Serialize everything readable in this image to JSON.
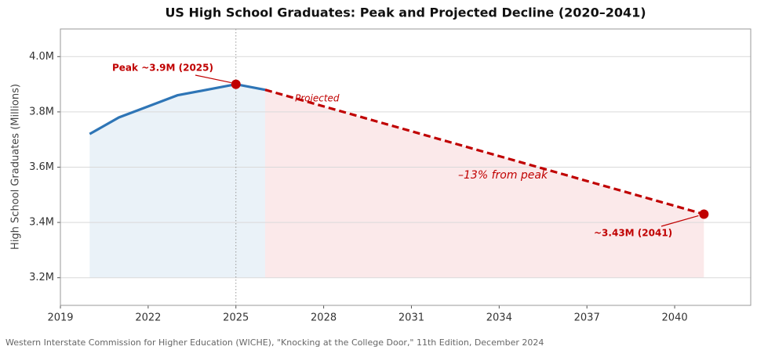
{
  "chart_data": {
    "type": "line",
    "title": "US High School Graduates: Peak and Projected Decline (2020–2041)",
    "y_label": "High School Graduates (Millions)",
    "source": "Western Interstate Commission for Higher Education (WICHE), \"Knocking at the College Door,\" 11th Edition, December 2024",
    "xlim": [
      2019,
      2042.6
    ],
    "xticks": [
      2019,
      2022,
      2025,
      2028,
      2031,
      2034,
      2037,
      2040
    ],
    "ylim": [
      3.1,
      4.1
    ],
    "yticks": [
      {
        "value": 3.2,
        "label": "3.2M"
      },
      {
        "value": 3.4,
        "label": "3.4M"
      },
      {
        "value": 3.6,
        "label": "3.6M"
      },
      {
        "value": 3.8,
        "label": "3.8M"
      },
      {
        "value": 4.0,
        "label": "4.0M"
      }
    ],
    "grid": true,
    "area_baseline": 3.2,
    "vline": 2025,
    "series": [
      {
        "x": [
          2020,
          2021,
          2022,
          2023,
          2024,
          2025,
          2026
        ],
        "values": [
          3.72,
          3.78,
          3.82,
          3.86,
          3.88,
          3.9,
          3.88
        ],
        "color": "#2e75b6",
        "fill": "#eaf2f8",
        "dashed": false
      },
      {
        "x": [
          2026,
          2041
        ],
        "values": [
          3.88,
          3.43
        ],
        "color": "#c00000",
        "fill": "#fbe9ea",
        "dashed": true
      }
    ],
    "annotations": [
      "Peak ~3.9M (2025)",
      "~3.43M (2041)",
      "Projected",
      "–13% from peak"
    ]
  }
}
